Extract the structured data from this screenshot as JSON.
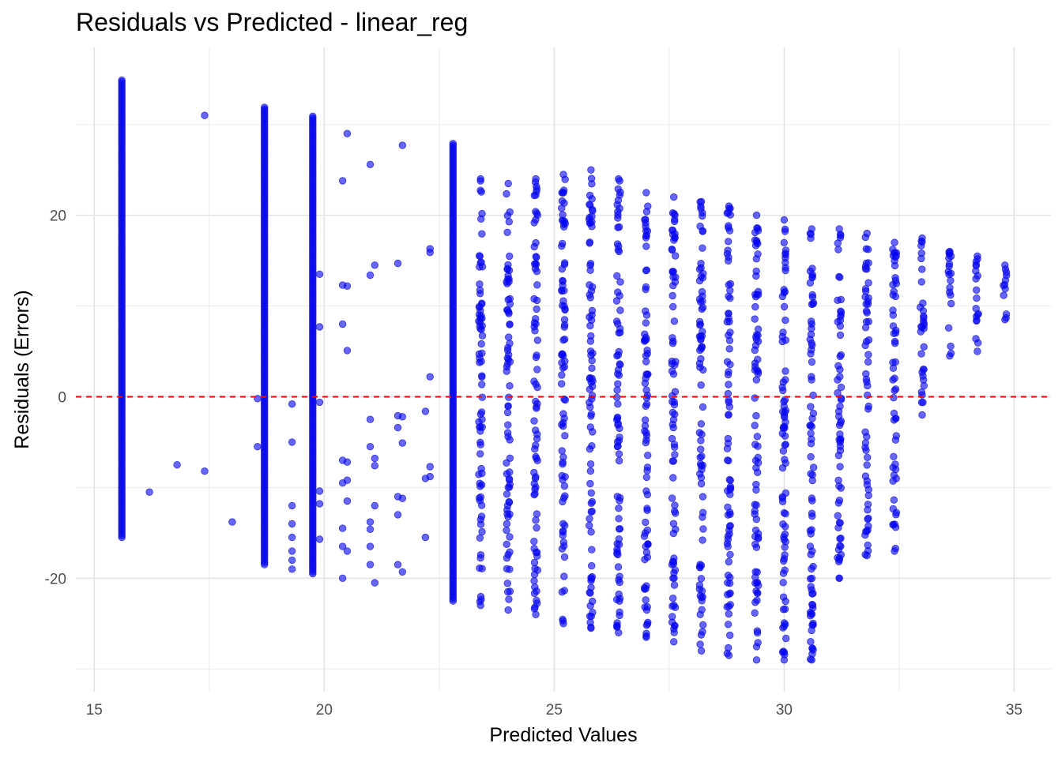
{
  "chart_data": {
    "type": "scatter",
    "title": "Residuals vs Predicted - linear_reg",
    "xlabel": "Predicted Values",
    "ylabel": "Residuals (Errors)",
    "xlim": [
      14.6,
      35.8
    ],
    "ylim": [
      -32.5,
      38.5
    ],
    "x_ticks": [
      15,
      20,
      25,
      30,
      35
    ],
    "x_tick_labels": [
      "15",
      "20",
      "25",
      "30",
      "35"
    ],
    "y_ticks": [
      -20,
      0,
      20
    ],
    "y_tick_labels": [
      "-20",
      "0",
      "20"
    ],
    "grid": true,
    "legend": "none",
    "point_color": "#0000ff",
    "reference_line": {
      "y": 0,
      "color": "#ff0000",
      "style": "dashed"
    },
    "dense_columns": [
      {
        "x": 15.6,
        "y_min": -15.5,
        "y_max": 35
      },
      {
        "x": 18.7,
        "y_min": -18.5,
        "y_max": 32
      },
      {
        "x": 19.75,
        "y_min": -19.5,
        "y_max": 31
      },
      {
        "x": 22.8,
        "y_min": -22.5,
        "y_max": 28
      }
    ],
    "columns": [
      {
        "x": 23.4,
        "y_min": -23,
        "y_max": 24
      },
      {
        "x": 24.0,
        "y_min": -23.5,
        "y_max": 23.5
      },
      {
        "x": 24.6,
        "y_min": -24,
        "y_max": 24
      },
      {
        "x": 25.2,
        "y_min": -25,
        "y_max": 24.5
      },
      {
        "x": 25.8,
        "y_min": -25.5,
        "y_max": 25
      },
      {
        "x": 26.4,
        "y_min": -26,
        "y_max": 24
      },
      {
        "x": 27.0,
        "y_min": -26.5,
        "y_max": 22.5
      },
      {
        "x": 27.6,
        "y_min": -27,
        "y_max": 22
      },
      {
        "x": 28.2,
        "y_min": -28,
        "y_max": 21.5
      },
      {
        "x": 28.8,
        "y_min": -28.5,
        "y_max": 21
      },
      {
        "x": 29.4,
        "y_min": -29,
        "y_max": 20
      },
      {
        "x": 30.0,
        "y_min": -29,
        "y_max": 19.5
      },
      {
        "x": 30.6,
        "y_min": -29,
        "y_max": 18.5
      },
      {
        "x": 31.2,
        "y_min": -20,
        "y_max": 18.5
      },
      {
        "x": 31.8,
        "y_min": -17.5,
        "y_max": 18
      },
      {
        "x": 32.4,
        "y_min": -17,
        "y_max": 17
      },
      {
        "x": 33.0,
        "y_min": -2,
        "y_max": 17.5
      },
      {
        "x": 33.6,
        "y_min": 4.5,
        "y_max": 16
      },
      {
        "x": 34.2,
        "y_min": 5,
        "y_max": 15.5
      },
      {
        "x": 34.8,
        "y_min": 8.5,
        "y_max": 14.5
      }
    ],
    "scattered_points": [
      {
        "x": 16.2,
        "y": -10.5
      },
      {
        "x": 16.8,
        "y": -7.5
      },
      {
        "x": 17.4,
        "y": -8.2
      },
      {
        "x": 17.4,
        "y": 31
      },
      {
        "x": 18.0,
        "y": -13.8
      },
      {
        "x": 18.55,
        "y": -5.5
      },
      {
        "x": 18.55,
        "y": -0.2
      },
      {
        "x": 19.3,
        "y": -0.8
      },
      {
        "x": 19.3,
        "y": -5
      },
      {
        "x": 19.3,
        "y": -12
      },
      {
        "x": 19.3,
        "y": -14
      },
      {
        "x": 19.3,
        "y": -15.5
      },
      {
        "x": 19.3,
        "y": -17
      },
      {
        "x": 19.3,
        "y": -18
      },
      {
        "x": 19.3,
        "y": -19
      },
      {
        "x": 19.9,
        "y": 13.5
      },
      {
        "x": 19.9,
        "y": 7.7
      },
      {
        "x": 19.9,
        "y": -0.6
      },
      {
        "x": 19.9,
        "y": -10.4
      },
      {
        "x": 19.9,
        "y": -11.8
      },
      {
        "x": 19.9,
        "y": -15.7
      },
      {
        "x": 20.4,
        "y": 23.8
      },
      {
        "x": 20.4,
        "y": 12.3
      },
      {
        "x": 20.4,
        "y": 8
      },
      {
        "x": 20.4,
        "y": -7
      },
      {
        "x": 20.4,
        "y": -9.5
      },
      {
        "x": 20.4,
        "y": -14.5
      },
      {
        "x": 20.4,
        "y": -16.5
      },
      {
        "x": 20.4,
        "y": -20
      },
      {
        "x": 20.5,
        "y": 29
      },
      {
        "x": 20.5,
        "y": 12.2
      },
      {
        "x": 20.5,
        "y": 5.1
      },
      {
        "x": 20.5,
        "y": -7.2
      },
      {
        "x": 20.5,
        "y": -9.2
      },
      {
        "x": 20.5,
        "y": -11.5
      },
      {
        "x": 20.5,
        "y": -17
      },
      {
        "x": 21.0,
        "y": 25.6
      },
      {
        "x": 21.0,
        "y": 13.4
      },
      {
        "x": 21.0,
        "y": -2.5
      },
      {
        "x": 21.0,
        "y": -5.5
      },
      {
        "x": 21.0,
        "y": -13.8
      },
      {
        "x": 21.0,
        "y": -14.6
      },
      {
        "x": 21.0,
        "y": -16.5
      },
      {
        "x": 21.0,
        "y": -18.5
      },
      {
        "x": 21.1,
        "y": 14.5
      },
      {
        "x": 21.1,
        "y": -6.8
      },
      {
        "x": 21.1,
        "y": -7.6
      },
      {
        "x": 21.1,
        "y": -12
      },
      {
        "x": 21.1,
        "y": -20.5
      },
      {
        "x": 21.6,
        "y": 14.7
      },
      {
        "x": 21.6,
        "y": -2.1
      },
      {
        "x": 21.6,
        "y": -3.4
      },
      {
        "x": 21.6,
        "y": -11
      },
      {
        "x": 21.6,
        "y": -13
      },
      {
        "x": 21.6,
        "y": -18.5
      },
      {
        "x": 21.7,
        "y": 27.7
      },
      {
        "x": 21.7,
        "y": -2.2
      },
      {
        "x": 21.7,
        "y": -5.1
      },
      {
        "x": 21.7,
        "y": -11.2
      },
      {
        "x": 21.7,
        "y": -19.3
      },
      {
        "x": 22.2,
        "y": -1.6
      },
      {
        "x": 22.2,
        "y": -9
      },
      {
        "x": 22.2,
        "y": -15.5
      },
      {
        "x": 22.3,
        "y": 16.3
      },
      {
        "x": 22.3,
        "y": 15.9
      },
      {
        "x": 22.3,
        "y": 2.2
      },
      {
        "x": 22.3,
        "y": -7.7
      },
      {
        "x": 22.3,
        "y": -8.8
      }
    ]
  }
}
